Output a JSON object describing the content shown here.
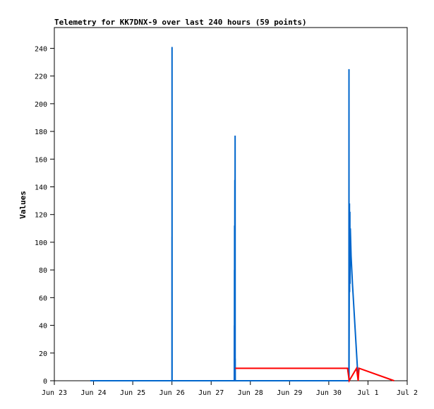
{
  "chart_data": {
    "type": "line",
    "title": "Telemetry for KK7DNX-9 over last 240 hours (59 points)",
    "ylabel": "Values",
    "xlabel": "",
    "ylim": [
      0,
      255
    ],
    "yticks": [
      0,
      20,
      40,
      60,
      80,
      100,
      120,
      140,
      160,
      180,
      200,
      220,
      240
    ],
    "xlim": [
      "2024-06-23T00:00",
      "2024-07-02T00:00"
    ],
    "xticks": [
      {
        "x": "2024-06-23T00:00",
        "label": "Jun 23"
      },
      {
        "x": "2024-06-24T00:00",
        "label": "Jun 24"
      },
      {
        "x": "2024-06-25T00:00",
        "label": "Jun 25"
      },
      {
        "x": "2024-06-26T00:00",
        "label": "Jun 26"
      },
      {
        "x": "2024-06-27T00:00",
        "label": "Jun 27"
      },
      {
        "x": "2024-06-28T00:00",
        "label": "Jun 28"
      },
      {
        "x": "2024-06-29T00:00",
        "label": "Jun 29"
      },
      {
        "x": "2024-06-30T00:00",
        "label": "Jun 30"
      },
      {
        "x": "2024-07-01T00:00",
        "label": "Jul 1"
      },
      {
        "x": "2024-07-02T00:00",
        "label": "Jul 2"
      }
    ],
    "grid": false,
    "series": [
      {
        "color": "#0066cc",
        "points": [
          [
            "2024-06-23T22:00",
            0
          ],
          [
            "2024-06-26T00:00",
            0
          ],
          [
            "2024-06-26T00:01",
            104
          ],
          [
            "2024-06-26T00:02",
            0
          ],
          [
            "2024-06-26T00:03",
            241
          ],
          [
            "2024-06-26T00:05",
            0
          ],
          [
            "2024-06-27T14:10",
            0
          ],
          [
            "2024-06-27T14:12",
            40
          ],
          [
            "2024-06-27T14:14",
            0
          ],
          [
            "2024-06-27T14:16",
            80
          ],
          [
            "2024-06-27T14:18",
            0
          ],
          [
            "2024-06-27T14:20",
            112
          ],
          [
            "2024-06-27T14:22",
            0
          ],
          [
            "2024-06-27T14:30",
            145
          ],
          [
            "2024-06-27T14:32",
            0
          ],
          [
            "2024-06-27T14:40",
            177
          ],
          [
            "2024-06-27T14:42",
            0
          ],
          [
            "2024-06-27T14:44",
            16
          ],
          [
            "2024-06-27T14:46",
            0
          ],
          [
            "2024-06-30T12:20",
            0
          ],
          [
            "2024-06-30T12:22",
            225
          ],
          [
            "2024-06-30T12:24",
            0
          ],
          [
            "2024-06-30T12:40",
            128
          ],
          [
            "2024-06-30T12:44",
            64
          ],
          [
            "2024-06-30T12:56",
            122
          ],
          [
            "2024-06-30T13:00",
            70
          ],
          [
            "2024-06-30T13:12",
            110
          ],
          [
            "2024-06-30T13:40",
            90
          ],
          [
            "2024-06-30T14:30",
            70
          ],
          [
            "2024-06-30T15:30",
            50
          ],
          [
            "2024-06-30T16:30",
            30
          ],
          [
            "2024-06-30T17:30",
            10
          ],
          [
            "2024-06-30T18:00",
            0
          ]
        ]
      },
      {
        "color": "#ff0000",
        "points": [
          [
            "2024-06-27T14:44",
            9
          ],
          [
            "2024-06-30T11:30",
            9
          ],
          [
            "2024-06-30T12:30",
            0
          ],
          [
            "2024-06-30T17:00",
            9
          ],
          [
            "2024-06-30T18:00",
            0
          ],
          [
            "2024-06-30T18:30",
            9
          ],
          [
            "2024-07-01T16:00",
            0
          ]
        ]
      }
    ]
  }
}
